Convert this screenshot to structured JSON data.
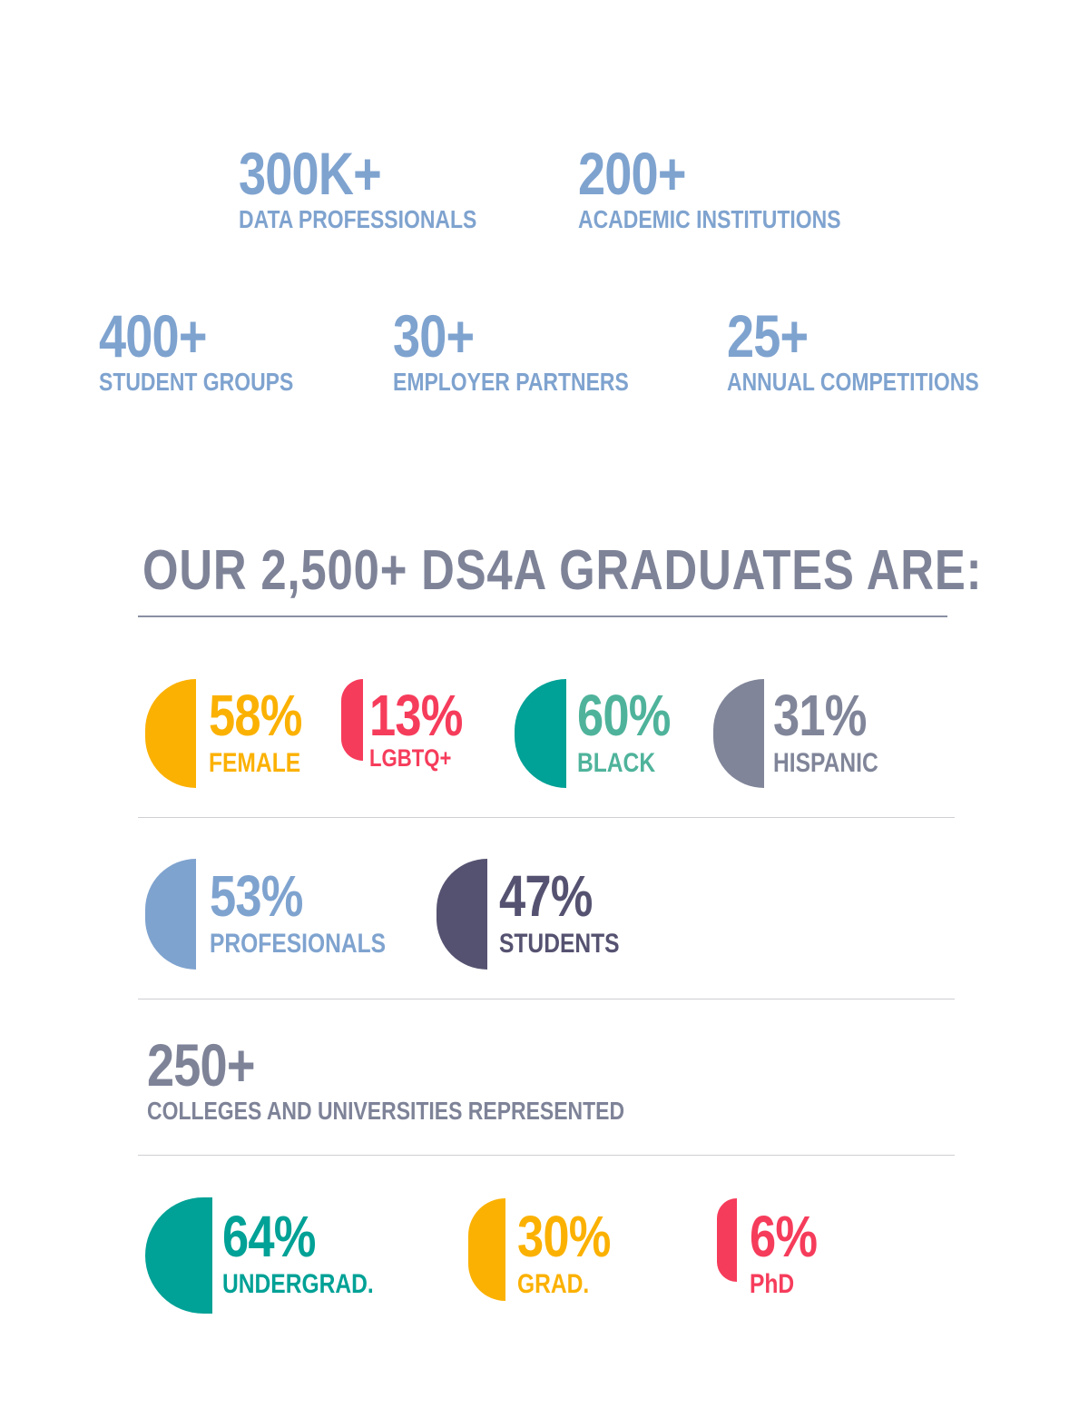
{
  "top_stats": [
    {
      "value": "300K+",
      "label": "DATA PROFESSIONALS"
    },
    {
      "value": "200+",
      "label": "ACADEMIC INSTITUTIONS"
    },
    {
      "value": "400+",
      "label": "STUDENT GROUPS"
    },
    {
      "value": "30+",
      "label": "EMPLOYER PARTNERS"
    },
    {
      "value": "25+",
      "label": "ANNUAL COMPETITIONS"
    }
  ],
  "heading": "OUR 2,500+ DS4A GRADUATES ARE:",
  "demographics": [
    {
      "value": "58%",
      "label": "FEMALE",
      "color": "#fbb102"
    },
    {
      "value": "13%",
      "label": "LGBTQ+",
      "color": "#f63c5b"
    },
    {
      "value": "60%",
      "label": "BLACK",
      "color": "#00a196",
      "text_color": "#4fb39b"
    },
    {
      "value": "31%",
      "label": "HISPANIC",
      "color": "#808599"
    }
  ],
  "roles": [
    {
      "value": "53%",
      "label": "PROFESIONALS",
      "color": "#7fa3cf"
    },
    {
      "value": "47%",
      "label": "STUDENTS",
      "color": "#555271"
    }
  ],
  "colleges": {
    "value": "250+",
    "label": "COLLEGES AND UNIVERSITIES REPRESENTED",
    "color": "#7e8398"
  },
  "degrees": [
    {
      "value": "64%",
      "label": "UNDERGRAD.",
      "color": "#00a196"
    },
    {
      "value": "30%",
      "label": "GRAD.",
      "color": "#fbb102"
    },
    {
      "value": "6%",
      "label": "PhD",
      "color": "#f63c5b"
    }
  ]
}
